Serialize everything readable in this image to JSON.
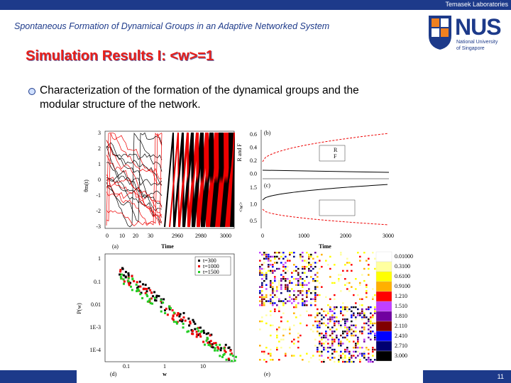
{
  "header": {
    "org": "Temasek Laboratories",
    "title": "Spontaneous Formation of Dynamical Groups in an Adaptive Networked System",
    "logo": {
      "name": "NUS",
      "line1": "National University",
      "line2": "of Singapore"
    }
  },
  "slide": {
    "heading": "Simulation Results I: <w>=1",
    "bullet_lines": [
      "Characterization of the formation of the dynamical groups and the",
      "modular structure of the network."
    ]
  },
  "figure": {
    "panel_a": {
      "label": "(a)",
      "ylabel": "θm(t)",
      "xlabel": "Time",
      "yticks": [
        "3",
        "2",
        "1",
        "0",
        "-1",
        "-2",
        "-3"
      ],
      "xticks": [
        "0",
        "10",
        "20",
        "30",
        "2960",
        "2980",
        "3000"
      ]
    },
    "panel_b": {
      "label": "(b)",
      "ylabel": "R and F",
      "yticks": [
        "0.6",
        "0.4",
        "0.2",
        "0.0"
      ],
      "legend": [
        "R",
        "F"
      ]
    },
    "panel_c": {
      "label": "(c)",
      "ylabel": "<w>",
      "xlabel": "Time",
      "yticks": [
        "1.5",
        "1.0",
        "0.5"
      ],
      "xticks": [
        "0",
        "1000",
        "2000",
        "3000"
      ]
    },
    "panel_d": {
      "label": "(d)",
      "ylabel": "P(w)",
      "xlabel": "w",
      "yticks": [
        "1",
        "0.1",
        "0.01",
        "1E-3",
        "1E-4"
      ],
      "xticks": [
        "0.1",
        "1",
        "10"
      ],
      "legend": [
        "t=300",
        "t=1000",
        "t=1500"
      ]
    },
    "panel_e": {
      "label": "(e)",
      "colorbar": [
        {
          "label": "0.01000",
          "color": "#ffffff"
        },
        {
          "label": "0.3100",
          "color": "#ffffa0"
        },
        {
          "label": "0.6100",
          "color": "#ffff00"
        },
        {
          "label": "0.9100",
          "color": "#ffb000"
        },
        {
          "label": "1.210",
          "color": "#ff0000"
        },
        {
          "label": "1.510",
          "color": "#c040ff"
        },
        {
          "label": "1.810",
          "color": "#7000a0"
        },
        {
          "label": "2.110",
          "color": "#800000"
        },
        {
          "label": "2.410",
          "color": "#0000ff"
        },
        {
          "label": "2.710",
          "color": "#000070"
        },
        {
          "label": "3.000",
          "color": "#000000"
        }
      ]
    }
  },
  "footer": {
    "page": "11"
  }
}
